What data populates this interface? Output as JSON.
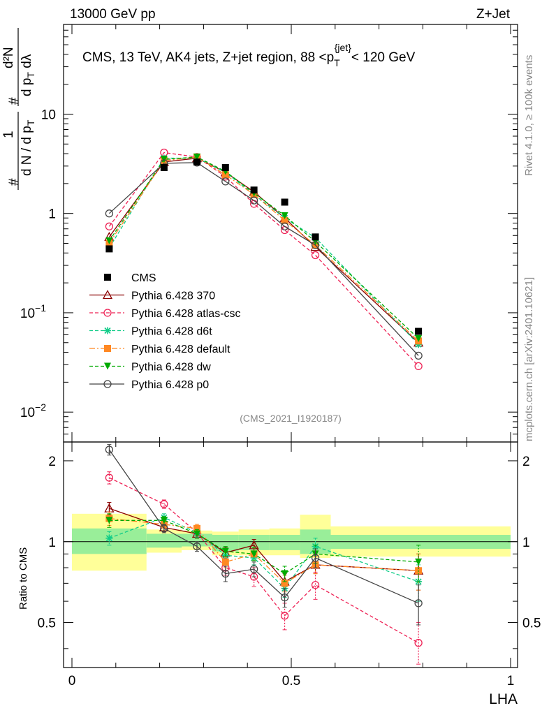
{
  "header": {
    "left": "13000 GeV pp",
    "right": "Z+Jet"
  },
  "side_labels": {
    "rivet": "Rivet 4.1.0, ≥ 100k events",
    "mcplots": "mcplots.cern.ch [arXiv:2401.10621]"
  },
  "chart_data": {
    "type": "line",
    "title": "CMS, 13 TeV, AK4 jets, Z+jet region, 88 <p_T^{jet}< 120 GeV",
    "title_parts": {
      "main": "CMS, 13 TeV, AK4 jets, Z+jet region, 88 <p",
      "sub": "T",
      "sup": "{jet}",
      "tail": "< 120 GeV"
    },
    "analysis_id": "(CMS_2021_I1920187)",
    "xlabel": "LHA",
    "ylabel": {
      "num": "1",
      "den_pre": "d N / d p",
      "den_sub": "T",
      "num2": "d²N",
      "den2": "d p",
      "den2_sub": "T",
      "den2_post": " dλ",
      "hash": "#"
    },
    "ratio_ylabel": "Ratio to CMS",
    "xlim": [
      0,
      1
    ],
    "ylim_log": [
      0.005,
      80
    ],
    "ratio_ylim": [
      0.34,
      2.35
    ],
    "x_ticks": [
      {
        "v": 0,
        "label": "0"
      },
      {
        "v": 0.5,
        "label": "0.5"
      },
      {
        "v": 1,
        "label": "1"
      }
    ],
    "y_ticks": [
      {
        "v": 0.01,
        "base": "10",
        "exp": "−2"
      },
      {
        "v": 0.1,
        "base": "10",
        "exp": "−1"
      },
      {
        "v": 1,
        "base": "1",
        "exp": ""
      },
      {
        "v": 10,
        "base": "10",
        "exp": ""
      }
    ],
    "ratio_ticks": [
      {
        "v": 0.5,
        "label": "0.5"
      },
      {
        "v": 1,
        "label": "1"
      },
      {
        "v": 2,
        "label": "2"
      }
    ],
    "x": [
      0.085,
      0.21,
      0.285,
      0.35,
      0.415,
      0.485,
      0.555,
      0.79
    ],
    "bins": [
      [
        0.0,
        0.17
      ],
      [
        0.17,
        0.25
      ],
      [
        0.25,
        0.32
      ],
      [
        0.32,
        0.38
      ],
      [
        0.38,
        0.45
      ],
      [
        0.45,
        0.52
      ],
      [
        0.52,
        0.59
      ],
      [
        0.59,
        1.0
      ]
    ],
    "data": {
      "name": "CMS",
      "color": "#000000",
      "values": [
        0.44,
        2.9,
        3.3,
        2.9,
        1.72,
        1.3,
        0.58,
        0.065
      ],
      "stat_band": [
        [
          0.9,
          1.12
        ],
        [
          0.95,
          1.07
        ],
        [
          0.96,
          1.07
        ],
        [
          0.92,
          1.06
        ],
        [
          0.93,
          1.06
        ],
        [
          0.93,
          1.06
        ],
        [
          0.9,
          1.11
        ],
        [
          0.94,
          1.06
        ]
      ],
      "total_band": [
        [
          0.78,
          1.27
        ],
        [
          0.91,
          1.11
        ],
        [
          0.93,
          1.1
        ],
        [
          0.89,
          1.09
        ],
        [
          0.89,
          1.11
        ],
        [
          0.89,
          1.12
        ],
        [
          0.87,
          1.26
        ],
        [
          0.88,
          1.14
        ]
      ]
    },
    "series": [
      {
        "name": "Pythia 6.428 370",
        "color": "#8b0000",
        "dash": "",
        "marker": "triangle-open",
        "values": [
          0.58,
          3.3,
          3.6,
          2.6,
          1.65,
          0.9,
          0.46,
          0.05
        ],
        "ratio": [
          1.33,
          1.13,
          1.07,
          0.91,
          0.97,
          0.71,
          0.82,
          0.78
        ],
        "ratio_err": [
          0.07,
          0.04,
          0.04,
          0.04,
          0.05,
          0.05,
          0.06,
          0.12
        ]
      },
      {
        "name": "Pythia 6.428 atlas-csc",
        "color": "#ee2255",
        "dash": "5,3",
        "marker": "circle-open",
        "values": [
          0.74,
          4.1,
          3.7,
          2.35,
          1.25,
          0.68,
          0.38,
          0.029
        ],
        "ratio": [
          1.73,
          1.38,
          1.08,
          0.8,
          0.74,
          0.53,
          0.69,
          0.42
        ],
        "ratio_err": [
          0.09,
          0.05,
          0.05,
          0.05,
          0.06,
          0.06,
          0.08,
          0.08
        ]
      },
      {
        "name": "Pythia 6.428 d6t",
        "color": "#11cc88",
        "dash": "5,3",
        "marker": "star",
        "values": [
          0.45,
          3.6,
          3.6,
          2.6,
          1.55,
          0.9,
          0.57,
          0.048
        ],
        "ratio": [
          1.03,
          1.23,
          1.08,
          0.89,
          0.87,
          0.67,
          0.96,
          0.71
        ],
        "ratio_err": [
          0.06,
          0.04,
          0.04,
          0.04,
          0.05,
          0.05,
          0.07,
          0.11
        ]
      },
      {
        "name": "Pythia 6.428 default",
        "color": "#ff8822",
        "dash": "8,3,2,3",
        "marker": "square",
        "values": [
          0.5,
          3.4,
          3.7,
          2.45,
          1.55,
          0.85,
          0.48,
          0.052
        ],
        "ratio": [
          1.22,
          1.16,
          1.12,
          0.84,
          0.9,
          0.7,
          0.82,
          0.78
        ],
        "ratio_err": [
          0.07,
          0.04,
          0.04,
          0.04,
          0.05,
          0.05,
          0.06,
          0.12
        ]
      },
      {
        "name": "Pythia 6.428 dw",
        "color": "#00aa00",
        "dash": "5,3",
        "marker": "triangle-down",
        "values": [
          0.53,
          3.5,
          3.7,
          2.65,
          1.6,
          0.95,
          0.52,
          0.055
        ],
        "ratio": [
          1.2,
          1.2,
          1.07,
          0.92,
          0.9,
          0.76,
          0.9,
          0.84
        ],
        "ratio_err": [
          0.07,
          0.04,
          0.04,
          0.04,
          0.05,
          0.05,
          0.07,
          0.13
        ]
      },
      {
        "name": "Pythia 6.428 p0",
        "color": "#444444",
        "dash": "",
        "marker": "circle-open",
        "values": [
          1.0,
          3.2,
          3.25,
          2.1,
          1.35,
          0.74,
          0.48,
          0.037
        ],
        "ratio": [
          2.2,
          1.12,
          0.96,
          0.76,
          0.79,
          0.62,
          0.87,
          0.59
        ],
        "ratio_err": [
          0.1,
          0.04,
          0.04,
          0.05,
          0.05,
          0.05,
          0.07,
          0.1
        ]
      }
    ]
  }
}
